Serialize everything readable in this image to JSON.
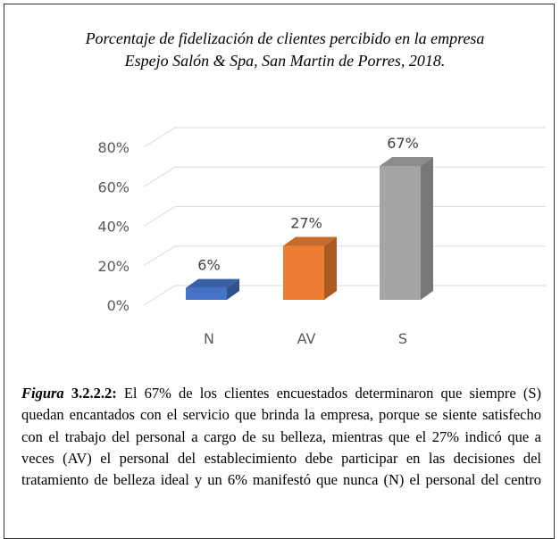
{
  "chart_data": {
    "type": "bar3d",
    "title": [
      "Porcentaje de fidelización de clientes percibido en la empresa",
      "Espejo Salón & Spa, San Martin de Porres, 2018."
    ],
    "categories": [
      "N",
      "AV",
      "S"
    ],
    "values": [
      6,
      27,
      67
    ],
    "value_labels": [
      "6%",
      "27%",
      "67%"
    ],
    "colors": [
      "#4472c4",
      "#ed7d31",
      "#a5a5a5"
    ],
    "ylim": [
      0,
      80
    ],
    "yticks": [
      {
        "value": 0,
        "label": "0%"
      },
      {
        "value": 20,
        "label": "20%"
      },
      {
        "value": 40,
        "label": "40%"
      },
      {
        "value": 60,
        "label": "60%"
      },
      {
        "value": 80,
        "label": "80%"
      }
    ],
    "grid": true
  },
  "caption": {
    "label": "Figura",
    "number": "3.2.2.2:",
    "text": "El 67% de los clientes encuestados determinaron que siempre (S) quedan encantados con el servicio que brinda la empresa, porque se siente satisfecho con el trabajo del personal a cargo de su belleza, mientras que el 27% indicó que a veces (AV) el personal del establecimiento debe participar en las decisiones del tratamiento de belleza ideal y un 6% manifestó que nunca (N) el personal del centro"
  }
}
